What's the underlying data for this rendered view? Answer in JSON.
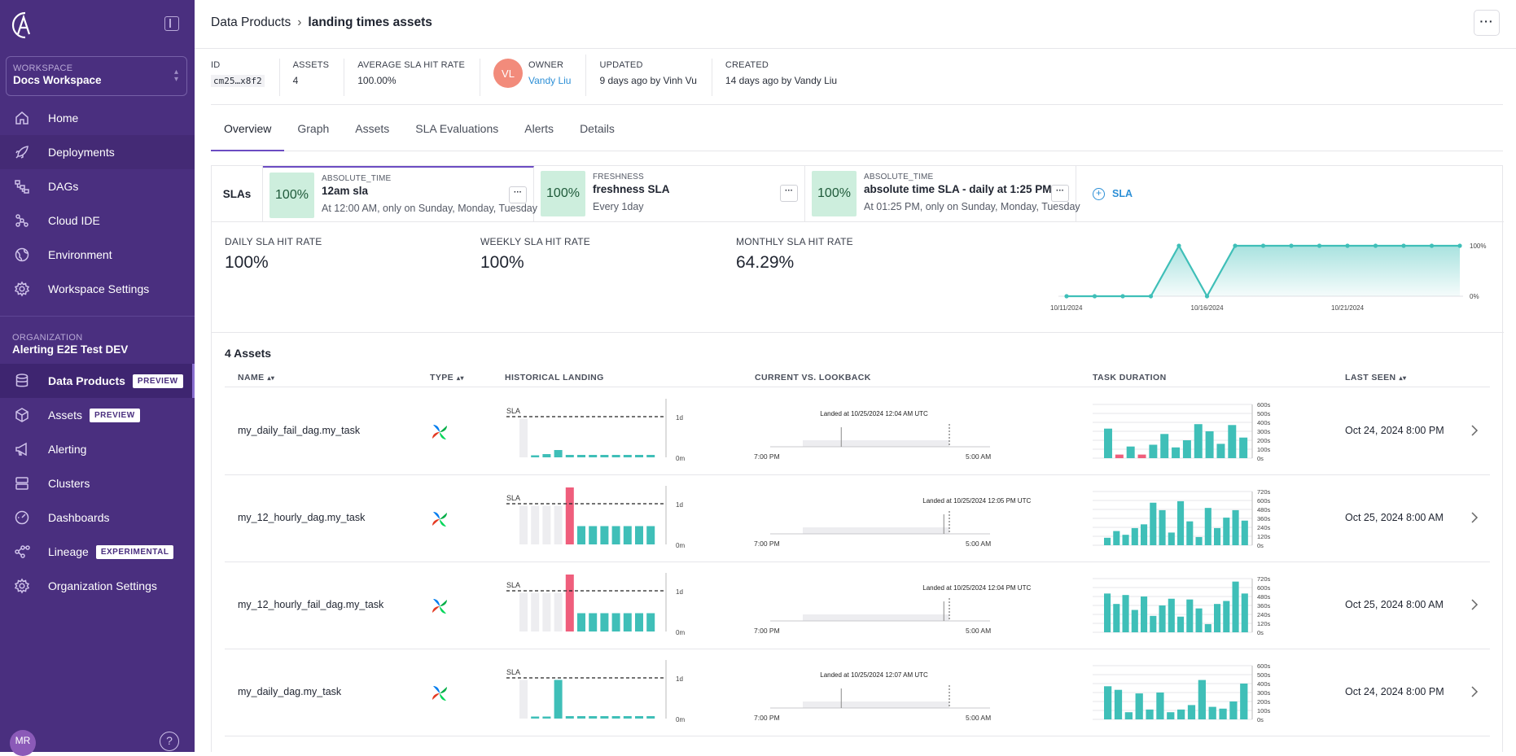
{
  "sidebar": {
    "workspace_label": "WORKSPACE",
    "workspace_name": "Docs Workspace",
    "items": [
      {
        "label": "Home",
        "icon": "home-icon"
      },
      {
        "label": "Deployments",
        "icon": "rocket-icon"
      },
      {
        "label": "DAGs",
        "icon": "dags-icon"
      },
      {
        "label": "Cloud IDE",
        "icon": "cloud-ide-icon"
      },
      {
        "label": "Environment",
        "icon": "globe-icon"
      },
      {
        "label": "Workspace Settings",
        "icon": "gear-icon"
      }
    ],
    "org_label": "ORGANIZATION",
    "org_name": "Alerting E2E Test DEV",
    "org_items": [
      {
        "label": "Data Products",
        "icon": "database-icon",
        "tag": "PREVIEW"
      },
      {
        "label": "Assets",
        "icon": "cube-icon",
        "tag": "PREVIEW"
      },
      {
        "label": "Alerting",
        "icon": "megaphone-icon"
      },
      {
        "label": "Clusters",
        "icon": "server-icon"
      },
      {
        "label": "Dashboards",
        "icon": "dashboard-icon"
      },
      {
        "label": "Lineage",
        "icon": "lineage-icon",
        "tag": "EXPERIMENTAL"
      },
      {
        "label": "Organization Settings",
        "icon": "gear-icon"
      }
    ],
    "user_initials": "MR",
    "help": "?"
  },
  "header": {
    "breadcrumb_parent": "Data Products",
    "breadcrumb_current": "landing times assets",
    "more": "···"
  },
  "meta": {
    "id_label": "ID",
    "id_value": "cm25…x8f2",
    "assets_label": "ASSETS",
    "assets_value": "4",
    "avg_label": "AVERAGE SLA HIT RATE",
    "avg_value": "100.00%",
    "owner_initials": "VL",
    "owner_label": "OWNER",
    "owner_value": "Vandy Liu",
    "updated_label": "UPDATED",
    "updated_value": "9 days ago by Vinh Vu",
    "created_label": "CREATED",
    "created_value": "14 days ago by Vandy Liu"
  },
  "tabs": [
    "Overview",
    "Graph",
    "Assets",
    "SLA Evaluations",
    "Alerts",
    "Details"
  ],
  "slas": {
    "label": "SLAs",
    "items": [
      {
        "pct": "100%",
        "type": "ABSOLUTE_TIME",
        "name": "12am sla",
        "desc": "At 12:00 AM, only on Sunday, Monday, Tuesday"
      },
      {
        "pct": "100%",
        "type": "FRESHNESS",
        "name": "freshness SLA",
        "desc": "Every 1day"
      },
      {
        "pct": "100%",
        "type": "ABSOLUTE_TIME",
        "name": "absolute time SLA - daily at 1:25 PM",
        "desc": "At 01:25 PM, only on Sunday, Monday, Tuesday"
      }
    ],
    "more": "···",
    "add_label": "SLA"
  },
  "rates": {
    "daily_label": "DAILY SLA HIT RATE",
    "daily_value": "100%",
    "weekly_label": "WEEKLY SLA HIT RATE",
    "weekly_value": "100%",
    "monthly_label": "MONTHLY SLA HIT RATE",
    "monthly_value": "64.29%"
  },
  "chart_data": {
    "type": "area",
    "x": [
      "10/11/2024",
      "10/12/2024",
      "10/13/2024",
      "10/14/2024",
      "10/15/2024",
      "10/16/2024",
      "10/17/2024",
      "10/18/2024",
      "10/19/2024",
      "10/20/2024",
      "10/21/2024",
      "10/22/2024",
      "10/23/2024",
      "10/24/2024",
      "10/25/2024"
    ],
    "values": [
      0,
      0,
      0,
      0,
      100,
      0,
      100,
      100,
      100,
      100,
      100,
      100,
      100,
      100,
      100
    ],
    "xticks": [
      "10/11/2024",
      "10/16/2024",
      "10/21/2024"
    ],
    "yticks": [
      "100%",
      "0%"
    ],
    "ylim": [
      0,
      100
    ],
    "color": "#3fbfb8"
  },
  "assets": {
    "title": "4 Assets",
    "columns": [
      "NAME",
      "TYPE",
      "HISTORICAL LANDING",
      "CURRENT VS. LOOKBACK",
      "TASK DURATION",
      "LAST SEEN"
    ],
    "rows": [
      {
        "name": "my_daily_fail_dag.my_task",
        "landed": "Landed at 10/25/2024 12:04 AM UTC",
        "last_seen": "Oct 24, 2024 8:00 PM",
        "hist": [
          0.95,
          0.05,
          0.08,
          0.18,
          0.06,
          0.06,
          0.06,
          0.06,
          0.06,
          0.06,
          0.06,
          0.06
        ],
        "hist_fail": [],
        "grey_count": 1,
        "dur_ticks": [
          "600s",
          "500s",
          "400s",
          "300s",
          "200s",
          "100s",
          "0s"
        ],
        "dur": [
          330,
          40,
          130,
          40,
          150,
          270,
          120,
          200,
          380,
          300,
          160,
          370,
          230
        ],
        "dur_fail": [
          1,
          3
        ],
        "dur_max": 600,
        "marker": 0.15
      },
      {
        "name": "my_12_hourly_dag.my_task",
        "landed": "Landed at 10/25/2024 12:05 PM UTC",
        "last_seen": "Oct 25, 2024 8:00 AM",
        "hist": [
          0.95,
          0.95,
          0.95,
          0.95,
          1.4,
          0.45,
          0.45,
          0.45,
          0.45,
          0.45,
          0.45,
          0.45
        ],
        "hist_fail": [
          4
        ],
        "grey_count": 4,
        "dur_ticks": [
          "720s",
          "600s",
          "480s",
          "360s",
          "240s",
          "120s",
          "0s"
        ],
        "dur": [
          100,
          190,
          140,
          230,
          280,
          570,
          470,
          170,
          590,
          320,
          110,
          500,
          230,
          370,
          470,
          330
        ],
        "dur_fail": [],
        "dur_max": 720,
        "marker": 0.55
      },
      {
        "name": "my_12_hourly_fail_dag.my_task",
        "landed": "Landed at 10/25/2024 12:04 PM UTC",
        "last_seen": "Oct 25, 2024 8:00 AM",
        "hist": [
          0.95,
          0.95,
          0.95,
          0.95,
          1.4,
          0.45,
          0.45,
          0.45,
          0.45,
          0.45,
          0.45,
          0.45
        ],
        "hist_fail": [
          4
        ],
        "grey_count": 4,
        "dur_ticks": [
          "720s",
          "600s",
          "480s",
          "360s",
          "240s",
          "120s",
          "0s"
        ],
        "dur": [
          520,
          380,
          500,
          300,
          480,
          220,
          360,
          450,
          210,
          440,
          320,
          110,
          380,
          420,
          680,
          520
        ],
        "dur_fail": [],
        "dur_max": 720,
        "marker": 0.55
      },
      {
        "name": "my_daily_dag.my_task",
        "landed": "Landed at 10/25/2024 12:07 AM UTC",
        "last_seen": "Oct 24, 2024 8:00 PM",
        "hist": [
          0.95,
          0.05,
          0.05,
          0.95,
          0.06,
          0.06,
          0.06,
          0.06,
          0.06,
          0.06,
          0.06,
          0.06
        ],
        "hist_fail": [],
        "grey_count": 1,
        "dur_ticks": [
          "600s",
          "500s",
          "400s",
          "300s",
          "200s",
          "100s",
          "0s"
        ],
        "dur": [
          370,
          330,
          80,
          290,
          110,
          300,
          80,
          110,
          160,
          440,
          140,
          120,
          200,
          400
        ],
        "dur_fail": [],
        "dur_max": 600,
        "marker": 0.15
      }
    ],
    "sla_label": "SLA",
    "y_top": "1d",
    "y_bottom": "0m",
    "time_start": "7:00 PM",
    "time_end": "5:00 AM"
  },
  "colors": {
    "sidebar": "#4a2f7f",
    "accent": "#6b4cc2",
    "teal": "#3fbfb8",
    "fail": "#ef5e7c",
    "link": "#2c8fd6"
  }
}
